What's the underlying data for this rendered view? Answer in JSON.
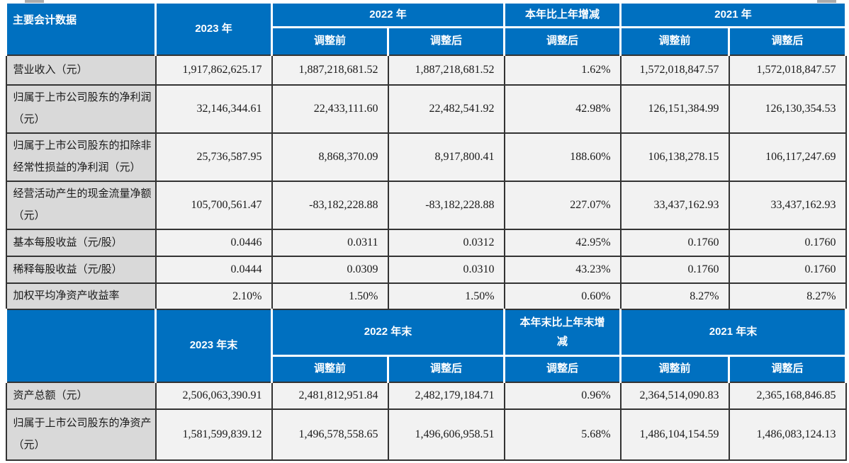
{
  "colors": {
    "header_bg": "#0070C0",
    "header_text": "#FFFFFF",
    "label_cell_bg": "#D9D9D9",
    "value_cell_bg": "#F2F2F2",
    "grid_border": "#333333"
  },
  "sections": [
    {
      "name": "annual",
      "corner": "主要会计数据",
      "columns": {
        "current": "2023 年",
        "prior": "2022 年",
        "change": "本年比上年增减",
        "prior2": "2021 年"
      },
      "subheaders": [
        "调整前",
        "调整后",
        "调整后",
        "调整前",
        "调整后"
      ],
      "rows": [
        {
          "label": "营业收入（元）",
          "values": [
            "1,917,862,625.17",
            "1,887,218,681.52",
            "1,887,218,681.52",
            "1.62%",
            "1,572,018,847.57",
            "1,572,018,847.57"
          ]
        },
        {
          "label": "归属于上市公司股东的净利润（元）",
          "values": [
            "32,146,344.61",
            "22,433,111.60",
            "22,482,541.92",
            "42.98%",
            "126,151,384.99",
            "126,130,354.53"
          ]
        },
        {
          "label": "归属于上市公司股东的扣除非经常性损益的净利润（元）",
          "values": [
            "25,736,587.95",
            "8,868,370.09",
            "8,917,800.41",
            "188.60%",
            "106,138,278.15",
            "106,117,247.69"
          ]
        },
        {
          "label": "经营活动产生的现金流量净额（元）",
          "values": [
            "105,700,561.47",
            "-83,182,228.88",
            "-83,182,228.88",
            "227.07%",
            "33,437,162.93",
            "33,437,162.93"
          ]
        },
        {
          "label": "基本每股收益（元/股）",
          "values": [
            "0.0446",
            "0.0311",
            "0.0312",
            "42.95%",
            "0.1760",
            "0.1760"
          ]
        },
        {
          "label": "稀释每股收益（元/股）",
          "values": [
            "0.0444",
            "0.0309",
            "0.0310",
            "43.23%",
            "0.1760",
            "0.1760"
          ]
        },
        {
          "label": "加权平均净资产收益率",
          "values": [
            "2.10%",
            "1.50%",
            "1.50%",
            "0.60%",
            "8.27%",
            "8.27%"
          ]
        }
      ]
    },
    {
      "name": "year_end",
      "corner": "",
      "columns": {
        "current": "2023 年末",
        "prior": "2022 年末",
        "change": "本年末比上年末增减",
        "prior2": "2021 年末"
      },
      "subheaders": [
        "调整前",
        "调整后",
        "调整后",
        "调整前",
        "调整后"
      ],
      "rows": [
        {
          "label": "资产总额（元）",
          "values": [
            "2,506,063,390.91",
            "2,481,812,951.84",
            "2,482,179,184.71",
            "0.96%",
            "2,364,514,090.83",
            "2,365,168,846.85"
          ]
        },
        {
          "label": "归属于上市公司股东的净资产（元）",
          "values": [
            "1,581,599,839.12",
            "1,496,578,558.65",
            "1,496,606,958.51",
            "5.68%",
            "1,486,104,154.59",
            "1,486,083,124.13"
          ]
        }
      ]
    }
  ]
}
